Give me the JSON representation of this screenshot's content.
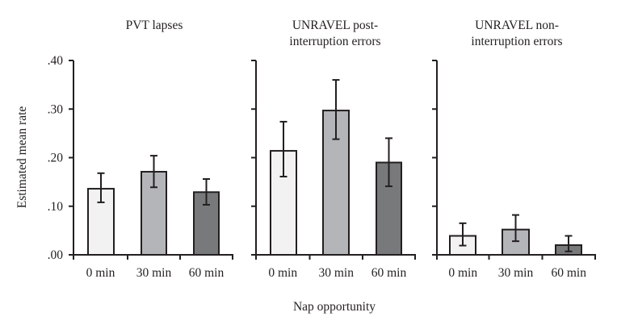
{
  "chart_data": [
    {
      "type": "bar",
      "title": "PVT lapses",
      "title_lines": [
        "PVT lapses"
      ],
      "categories": [
        "0 min",
        "30 min",
        "60 min"
      ],
      "values": [
        0.136,
        0.171,
        0.129
      ],
      "error_upper": [
        0.168,
        0.204,
        0.156
      ],
      "error_lower": [
        0.108,
        0.139,
        0.103
      ],
      "ylabel": "Estimated mean rate",
      "ylim": [
        0,
        0.4
      ],
      "yticks": [
        ".00",
        ".10",
        ".20",
        ".30",
        ".40"
      ]
    },
    {
      "type": "bar",
      "title": "UNRAVEL post-interruption errors",
      "title_lines": [
        "UNRAVEL post-",
        "interruption errors"
      ],
      "categories": [
        "0 min",
        "30 min",
        "60 min"
      ],
      "values": [
        0.214,
        0.297,
        0.19
      ],
      "error_upper": [
        0.274,
        0.36,
        0.24
      ],
      "error_lower": [
        0.161,
        0.238,
        0.141
      ],
      "ylim": [
        0,
        0.4
      ]
    },
    {
      "type": "bar",
      "title": "UNRAVEL non-interruption errors",
      "title_lines": [
        "UNRAVEL non-",
        "interruption errors"
      ],
      "categories": [
        "0 min",
        "30 min",
        "60 min"
      ],
      "values": [
        0.039,
        0.052,
        0.02
      ],
      "error_upper": [
        0.065,
        0.082,
        0.039
      ],
      "error_lower": [
        0.019,
        0.028,
        0.007
      ],
      "ylim": [
        0,
        0.4
      ]
    }
  ],
  "shared": {
    "xlabel": "Nap opportunity",
    "ylabel": "Estimated mean rate",
    "yticks": [
      ".00",
      ".10",
      ".20",
      ".30",
      ".40"
    ],
    "ytick_values": [
      0,
      0.1,
      0.2,
      0.3,
      0.4
    ],
    "bar_colors": [
      "#f2f2f2",
      "#b4b5b8",
      "#78797b"
    ],
    "stroke_color": "#231f20"
  }
}
